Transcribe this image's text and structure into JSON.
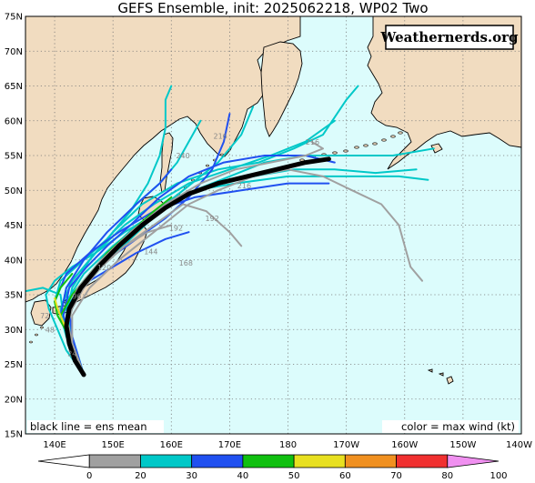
{
  "title": "GEFS Ensemble, init: 2025062218, WP02 Two",
  "brand": "Weathernerds.org",
  "notes": {
    "left": "black line = ens mean",
    "right": "color = max wind (kt)"
  },
  "colors": {
    "ocean": "#dcfcfc",
    "land": "#f1dcc0",
    "coast": "#000000",
    "grid": "#777777",
    "mean_track": "#000000"
  },
  "axes": {
    "lat_ticks": [
      "75N",
      "70N",
      "65N",
      "60N",
      "55N",
      "50N",
      "45N",
      "40N",
      "35N",
      "30N",
      "25N",
      "20N",
      "15N"
    ],
    "lon_ticks": [
      "140E",
      "150E",
      "160E",
      "170E",
      "180",
      "170W",
      "160W",
      "150W",
      "140W"
    ]
  },
  "colorbar": {
    "labels": [
      "0",
      "20",
      "30",
      "40",
      "50",
      "60",
      "70",
      "80",
      "100"
    ],
    "bins": [
      {
        "from": 0,
        "to": 20,
        "color": "#a0a0a0"
      },
      {
        "from": 20,
        "to": 30,
        "color": "#00c8c8"
      },
      {
        "from": 30,
        "to": 40,
        "color": "#2050f0"
      },
      {
        "from": 40,
        "to": 50,
        "color": "#10c010"
      },
      {
        "from": 50,
        "to": 60,
        "color": "#e8e020"
      },
      {
        "from": 60,
        "to": 70,
        "color": "#f09020"
      },
      {
        "from": 70,
        "to": 80,
        "color": "#f03030"
      },
      {
        "from": 80,
        "to": 100,
        "color": "#e01880"
      },
      {
        "from": 100,
        "to": null,
        "color": "#f090f0"
      }
    ]
  },
  "mean_track": {
    "color": "#000000",
    "points": [
      [
        145.0,
        23.5
      ],
      [
        143.5,
        25.5
      ],
      [
        142.5,
        28.0
      ],
      [
        142.0,
        30.5
      ],
      [
        142.5,
        33.0
      ],
      [
        144.5,
        36.0
      ],
      [
        147.5,
        39.0
      ],
      [
        151.0,
        42.0
      ],
      [
        155.0,
        45.0
      ],
      [
        159.0,
        47.5
      ],
      [
        163.0,
        49.5
      ],
      [
        168.0,
        51.0
      ],
      [
        173.0,
        52.0
      ],
      [
        178.0,
        53.0
      ],
      [
        183.0,
        54.0
      ],
      [
        187.0,
        54.5
      ]
    ]
  },
  "member_tracks": [
    {
      "color": "#00c8c8",
      "points": [
        [
          145,
          23.5
        ],
        [
          142,
          27
        ],
        [
          140.5,
          30
        ],
        [
          139,
          33
        ],
        [
          138.5,
          35
        ],
        [
          140,
          37
        ],
        [
          143,
          39
        ],
        [
          147,
          41
        ],
        [
          152,
          44
        ],
        [
          158,
          47
        ],
        [
          164,
          50
        ],
        [
          170,
          52
        ],
        [
          176,
          54
        ],
        [
          183,
          55
        ],
        [
          190,
          55
        ],
        [
          198,
          55
        ],
        [
          205,
          56
        ]
      ]
    },
    {
      "color": "#00c8c8",
      "points": [
        [
          145,
          23.5
        ],
        [
          143,
          28
        ],
        [
          142,
          32
        ],
        [
          143,
          36
        ],
        [
          146,
          40
        ],
        [
          150,
          44
        ],
        [
          154,
          48
        ],
        [
          158,
          51
        ],
        [
          161,
          54
        ],
        [
          163,
          57
        ],
        [
          165,
          60
        ]
      ]
    },
    {
      "color": "#00c8c8",
      "points": [
        [
          145,
          23.5
        ],
        [
          142,
          29
        ],
        [
          141,
          33
        ],
        [
          143,
          37
        ],
        [
          147,
          41
        ],
        [
          152,
          45
        ],
        [
          157,
          48
        ],
        [
          163,
          51
        ],
        [
          170,
          53
        ],
        [
          177,
          55
        ],
        [
          183,
          57
        ],
        [
          188,
          60
        ]
      ]
    },
    {
      "color": "#00c8c8",
      "points": [
        [
          145,
          23.5
        ],
        [
          143,
          27
        ],
        [
          142,
          31
        ],
        [
          144,
          35
        ],
        [
          148,
          39
        ],
        [
          153,
          43
        ],
        [
          158,
          47
        ],
        [
          164,
          50
        ],
        [
          171,
          51
        ],
        [
          180,
          52
        ],
        [
          190,
          52
        ],
        [
          199,
          52
        ],
        [
          204,
          51.5
        ]
      ]
    },
    {
      "color": "#00c8c8",
      "points": [
        [
          145,
          23.5
        ],
        [
          142,
          30
        ],
        [
          140,
          34
        ],
        [
          141,
          37
        ],
        [
          145,
          40
        ],
        [
          149,
          43
        ],
        [
          153,
          47
        ],
        [
          156,
          51
        ],
        [
          158,
          55
        ],
        [
          159,
          59
        ],
        [
          159,
          63
        ],
        [
          160,
          65
        ]
      ]
    },
    {
      "color": "#00c8c8",
      "points": [
        [
          145,
          23.5
        ],
        [
          142,
          29
        ],
        [
          141,
          32
        ],
        [
          142,
          36
        ],
        [
          146,
          40
        ],
        [
          150,
          44
        ],
        [
          155,
          48
        ],
        [
          161,
          51
        ],
        [
          168,
          53
        ],
        [
          175,
          54
        ],
        [
          181,
          56
        ],
        [
          186,
          58
        ],
        [
          190,
          63
        ],
        [
          192,
          65
        ]
      ]
    },
    {
      "color": "#00c8c8",
      "points": [
        [
          145,
          23.5
        ],
        [
          143,
          28
        ],
        [
          141.5,
          32
        ],
        [
          141,
          35
        ],
        [
          138,
          36
        ],
        [
          135,
          35.5
        ]
      ]
    },
    {
      "color": "#00c8c8",
      "points": [
        [
          145,
          23.5
        ],
        [
          143,
          28
        ],
        [
          142,
          33
        ],
        [
          145,
          37
        ],
        [
          149,
          41
        ],
        [
          154,
          45
        ],
        [
          160,
          48
        ],
        [
          167,
          51
        ],
        [
          174,
          52
        ],
        [
          181,
          53
        ],
        [
          188,
          53
        ],
        [
          195,
          52.5
        ],
        [
          202,
          53
        ]
      ]
    },
    {
      "color": "#00c8c8",
      "points": [
        [
          145,
          23.5
        ],
        [
          143,
          29
        ],
        [
          142,
          34
        ],
        [
          145,
          38
        ],
        [
          150,
          42
        ],
        [
          156,
          46
        ],
        [
          162,
          50
        ],
        [
          168,
          54
        ],
        [
          172,
          58
        ],
        [
          174,
          62
        ]
      ]
    },
    {
      "color": "#2050f0",
      "points": [
        [
          145,
          23.5
        ],
        [
          143,
          29
        ],
        [
          142.5,
          33
        ],
        [
          145,
          37
        ],
        [
          149,
          40
        ],
        [
          154,
          43
        ],
        [
          159,
          46
        ],
        [
          163,
          49
        ],
        [
          167,
          53
        ],
        [
          169,
          57
        ],
        [
          170,
          61
        ]
      ]
    },
    {
      "color": "#2050f0",
      "points": [
        [
          145,
          23.5
        ],
        [
          143,
          28
        ],
        [
          141,
          32
        ],
        [
          142,
          36
        ],
        [
          145,
          40
        ],
        [
          149,
          44
        ],
        [
          154,
          48
        ],
        [
          158,
          51
        ],
        [
          160,
          53
        ]
      ]
    },
    {
      "color": "#2050f0",
      "points": [
        [
          145,
          23.5
        ],
        [
          142,
          30
        ],
        [
          140,
          34
        ],
        [
          142,
          38
        ],
        [
          146,
          41
        ],
        [
          151,
          44
        ],
        [
          157,
          47
        ],
        [
          164,
          49
        ],
        [
          172,
          50
        ],
        [
          180,
          51
        ],
        [
          187,
          51
        ]
      ]
    },
    {
      "color": "#2050f0",
      "points": [
        [
          145,
          23.5
        ],
        [
          143,
          27
        ],
        [
          142,
          31
        ],
        [
          143,
          34
        ],
        [
          146,
          37
        ],
        [
          150,
          39
        ],
        [
          154,
          41
        ],
        [
          159,
          43
        ],
        [
          163,
          44
        ]
      ]
    },
    {
      "color": "#2050f0",
      "points": [
        [
          145,
          23.5
        ],
        [
          143,
          28
        ],
        [
          141.5,
          32
        ],
        [
          142.5,
          36
        ],
        [
          145.5,
          39
        ],
        [
          149,
          42
        ],
        [
          153,
          45
        ],
        [
          158,
          49
        ],
        [
          163,
          52
        ],
        [
          169,
          54
        ],
        [
          176,
          55
        ],
        [
          183,
          55
        ],
        [
          188,
          54
        ]
      ]
    },
    {
      "color": "#10c010",
      "points": [
        [
          145,
          23.5
        ],
        [
          143,
          28
        ],
        [
          141,
          32
        ],
        [
          143,
          35
        ],
        [
          146,
          38
        ],
        [
          149,
          41
        ],
        [
          153,
          44
        ],
        [
          157,
          47
        ],
        [
          160,
          49
        ]
      ]
    },
    {
      "color": "#10c010",
      "points": [
        [
          145,
          23.5
        ],
        [
          142.5,
          29
        ],
        [
          140.5,
          32
        ],
        [
          140,
          34
        ],
        [
          141,
          36
        ],
        [
          143,
          38
        ]
      ]
    },
    {
      "color": "#e8e020",
      "points": [
        [
          145,
          23.5
        ],
        [
          143,
          28
        ],
        [
          141.5,
          31
        ],
        [
          140.5,
          33
        ],
        [
          140,
          34.5
        ]
      ]
    },
    {
      "color": "#a0a0a0",
      "points": [
        [
          145,
          23.5
        ],
        [
          143,
          27
        ],
        [
          142,
          31
        ],
        [
          144,
          35
        ],
        [
          148,
          39
        ],
        [
          152,
          42
        ],
        [
          157,
          45
        ],
        [
          162,
          48
        ],
        [
          166,
          47
        ],
        [
          170,
          44
        ],
        [
          172,
          42
        ]
      ]
    },
    {
      "color": "#a0a0a0",
      "points": [
        [
          145,
          23.5
        ],
        [
          143,
          28
        ],
        [
          143,
          32
        ],
        [
          146,
          36
        ],
        [
          151,
          40
        ],
        [
          157,
          44
        ],
        [
          163,
          48
        ],
        [
          168,
          50
        ],
        [
          174,
          52
        ],
        [
          180,
          53
        ],
        [
          186,
          52
        ],
        [
          191,
          50
        ],
        [
          196,
          48
        ],
        [
          199,
          45
        ],
        [
          200,
          42
        ],
        [
          201,
          39
        ],
        [
          203,
          37
        ]
      ]
    },
    {
      "color": "#a0a0a0",
      "points": [
        [
          145,
          23.5
        ],
        [
          143,
          26
        ],
        [
          142,
          30
        ],
        [
          143,
          33
        ],
        [
          145,
          36
        ],
        [
          148,
          39
        ],
        [
          152,
          42
        ],
        [
          156,
          44
        ],
        [
          160,
          45
        ]
      ]
    },
    {
      "color": "#a0a0a0",
      "points": [
        [
          145,
          23.5
        ],
        [
          143,
          28
        ],
        [
          142,
          32
        ],
        [
          144,
          36
        ],
        [
          148,
          40
        ],
        [
          153,
          44
        ],
        [
          159,
          48
        ],
        [
          165,
          51
        ],
        [
          171,
          53
        ],
        [
          177,
          54
        ],
        [
          183,
          55
        ],
        [
          186,
          56
        ],
        [
          184,
          57
        ]
      ]
    }
  ],
  "hour_labels": [
    {
      "text": "24",
      "lon": 143.0,
      "lat": 26.2
    },
    {
      "text": "48",
      "lon": 139.2,
      "lat": 29.6
    },
    {
      "text": "72",
      "lon": 138.3,
      "lat": 31.6
    },
    {
      "text": "96",
      "lon": 143.8,
      "lat": 34.4
    },
    {
      "text": "120",
      "lon": 148.5,
      "lat": 38.5
    },
    {
      "text": "144",
      "lon": 156.5,
      "lat": 40.8
    },
    {
      "text": "168",
      "lon": 162.5,
      "lat": 39.2
    },
    {
      "text": "192",
      "lon": 160.8,
      "lat": 44.2
    },
    {
      "text": "192",
      "lon": 167.0,
      "lat": 45.6
    },
    {
      "text": "216",
      "lon": 172.5,
      "lat": 50.3
    },
    {
      "text": "216",
      "lon": 168.4,
      "lat": 57.4
    },
    {
      "text": "216",
      "lon": 184.2,
      "lat": 56.6
    },
    {
      "text": "240",
      "lon": 162.0,
      "lat": 54.6
    }
  ]
}
